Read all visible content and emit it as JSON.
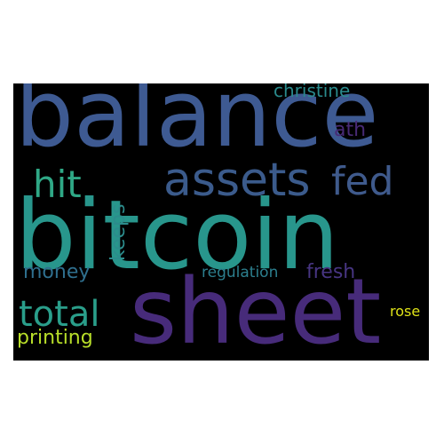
{
  "words": {
    "balance": {
      "text": "balance",
      "color": "#3e5a92"
    },
    "bitcoin": {
      "text": "bitcoin",
      "color": "#28968c"
    },
    "sheet": {
      "text": "sheet",
      "color": "#472b7a"
    },
    "assets": {
      "text": "assets",
      "color": "#3b5b8c"
    },
    "fed": {
      "text": "fed",
      "color": "#3f5a8c"
    },
    "hit": {
      "text": "hit",
      "color": "#2fa886"
    },
    "christine": {
      "text": "christine",
      "color": "#2a8a8c"
    },
    "ath": {
      "text": "ath",
      "color": "#482a75"
    },
    "money": {
      "text": "money",
      "color": "#2f6f8e"
    },
    "total": {
      "text": "total",
      "color": "#2a9e8a"
    },
    "printing": {
      "text": "printing",
      "color": "#b8de29"
    },
    "regulation": {
      "text": "regulation",
      "color": "#2c7f8e"
    },
    "fresh": {
      "text": "fresh",
      "color": "#473582"
    },
    "rose": {
      "text": "rose",
      "color": "#dfe318"
    },
    "keeps": {
      "text": "keeps",
      "color": "#2c8c8c"
    }
  }
}
